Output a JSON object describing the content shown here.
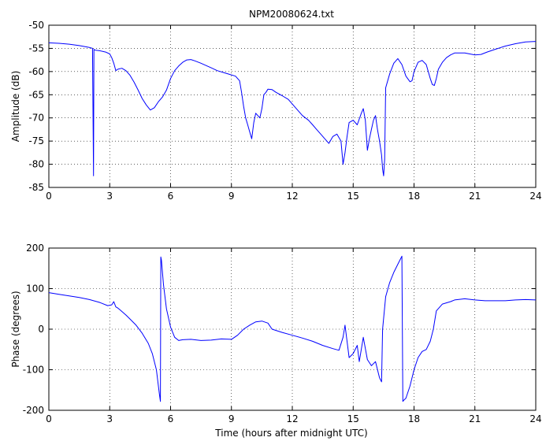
{
  "figure": {
    "title": "NPM20080624.txt",
    "xlabel": "Time (hours after midnight UTC)",
    "line_color": "#0000ff"
  },
  "chart_data": [
    {
      "type": "line",
      "title": "NPM20080624.txt",
      "xlabel": "",
      "ylabel": "Amplitude (dB)",
      "xlim": [
        0,
        24
      ],
      "ylim": [
        -85,
        -50
      ],
      "xticks": [
        0,
        3,
        6,
        9,
        12,
        15,
        18,
        21,
        24
      ],
      "yticks": [
        -85,
        -80,
        -75,
        -70,
        -65,
        -60,
        -55,
        -50
      ],
      "grid": true,
      "series": [
        {
          "x": [
            0,
            0.5,
            1,
            1.5,
            2,
            2.15,
            2.2,
            2.22,
            2.25,
            2.3,
            2.5,
            2.8,
            3.0,
            3.1,
            3.2,
            3.3,
            3.4,
            3.6,
            3.8,
            4.0,
            4.2,
            4.4,
            4.6,
            4.8,
            5.0,
            5.2,
            5.4,
            5.6,
            5.8,
            6.0,
            6.2,
            6.4,
            6.6,
            6.8,
            7.0,
            7.2,
            7.5,
            7.8,
            8.0,
            8.3,
            8.6,
            8.9,
            9.2,
            9.4,
            9.5,
            9.6,
            9.7,
            9.8,
            9.9,
            10.0,
            10.1,
            10.2,
            10.4,
            10.5,
            10.6,
            10.7,
            10.8,
            11.0,
            11.2,
            11.5,
            11.8,
            12.0,
            12.2,
            12.5,
            12.8,
            13.0,
            13.2,
            13.4,
            13.6,
            13.8,
            14.0,
            14.2,
            14.4,
            14.5,
            14.6,
            14.7,
            14.8,
            15.0,
            15.2,
            15.4,
            15.5,
            15.6,
            15.7,
            15.8,
            15.9,
            16.0,
            16.1,
            16.2,
            16.3,
            16.4,
            16.45,
            16.5,
            16.55,
            16.6,
            16.8,
            17.0,
            17.2,
            17.4,
            17.6,
            17.8,
            17.9,
            18.0,
            18.2,
            18.4,
            18.6,
            18.8,
            18.9,
            19.0,
            19.1,
            19.2,
            19.4,
            19.6,
            19.8,
            20.0,
            20.5,
            21.0,
            21.3,
            21.6,
            22.0,
            22.5,
            23.0,
            23.5,
            24.0
          ],
          "y": [
            -53.8,
            -53.9,
            -54.1,
            -54.4,
            -54.8,
            -55.0,
            -82.5,
            -55.2,
            -55.3,
            -55.4,
            -55.5,
            -55.8,
            -56.2,
            -57.0,
            -58.2,
            -59.8,
            -59.5,
            -59.3,
            -59.8,
            -60.8,
            -62.3,
            -64.0,
            -65.8,
            -67.2,
            -68.3,
            -67.8,
            -66.5,
            -65.5,
            -64.0,
            -61.5,
            -59.8,
            -58.8,
            -58.0,
            -57.5,
            -57.4,
            -57.7,
            -58.2,
            -58.8,
            -59.2,
            -59.8,
            -60.2,
            -60.6,
            -61.0,
            -62.0,
            -64.5,
            -67.5,
            -70.0,
            -71.5,
            -73.0,
            -74.5,
            -71.0,
            -69.0,
            -70.0,
            -68.0,
            -65.0,
            -64.5,
            -63.8,
            -63.9,
            -64.5,
            -65.2,
            -66.0,
            -67.0,
            -68.0,
            -69.5,
            -70.5,
            -71.5,
            -72.5,
            -73.5,
            -74.5,
            -75.5,
            -74.0,
            -73.5,
            -75.0,
            -80.0,
            -77.5,
            -74.0,
            -71.0,
            -70.5,
            -71.5,
            -69.0,
            -68.0,
            -70.5,
            -77.0,
            -74.5,
            -72.5,
            -70.5,
            -69.5,
            -72.5,
            -75.0,
            -78.0,
            -81.0,
            -82.5,
            -79.0,
            -63.5,
            -60.5,
            -58.2,
            -57.2,
            -58.5,
            -61.0,
            -62.2,
            -62.0,
            -60.0,
            -58.0,
            -57.6,
            -58.5,
            -61.5,
            -62.8,
            -63.0,
            -61.5,
            -59.5,
            -58.0,
            -57.0,
            -56.4,
            -56.0,
            -56.0,
            -56.4,
            -56.3,
            -55.8,
            -55.2,
            -54.5,
            -54.0,
            -53.6,
            -53.5
          ]
        }
      ]
    },
    {
      "type": "line",
      "title": "",
      "xlabel": "Time (hours after midnight UTC)",
      "ylabel": "Phase (degrees)",
      "xlim": [
        0,
        24
      ],
      "ylim": [
        -200,
        200
      ],
      "xticks": [
        0,
        3,
        6,
        9,
        12,
        15,
        18,
        21,
        24
      ],
      "yticks": [
        -200,
        -100,
        0,
        100,
        200
      ],
      "grid": true,
      "series": [
        {
          "x": [
            0,
            0.5,
            1,
            1.5,
            2,
            2.5,
            2.9,
            3.1,
            3.2,
            3.3,
            3.4,
            3.5,
            3.8,
            4.0,
            4.3,
            4.6,
            4.9,
            5.1,
            5.3,
            5.45,
            5.5,
            5.52,
            5.55,
            5.65,
            5.8,
            6.0,
            6.2,
            6.4,
            6.6,
            7.0,
            7.5,
            8.0,
            8.5,
            9.0,
            9.3,
            9.6,
            9.9,
            10.2,
            10.5,
            10.8,
            11.0,
            11.5,
            12.0,
            12.5,
            13.0,
            13.5,
            14.0,
            14.3,
            14.5,
            14.6,
            14.7,
            14.8,
            15.0,
            15.2,
            15.3,
            15.5,
            15.7,
            15.9,
            16.1,
            16.3,
            16.4,
            16.45,
            16.6,
            16.8,
            17.0,
            17.2,
            17.4,
            17.45,
            17.5,
            17.6,
            17.8,
            18.0,
            18.2,
            18.4,
            18.6,
            18.8,
            18.95,
            19.1,
            19.4,
            19.8,
            20.0,
            20.5,
            21.0,
            21.5,
            22.0,
            22.5,
            23.0,
            23.5,
            24.0
          ],
          "y": [
            90,
            86,
            82,
            78,
            73,
            66,
            58,
            60,
            68,
            55,
            52,
            48,
            35,
            25,
            10,
            -10,
            -35,
            -60,
            -100,
            -160,
            -178,
            178,
            170,
            110,
            50,
            5,
            -20,
            -28,
            -26,
            -25,
            -28,
            -27,
            -24,
            -25,
            -15,
            0,
            10,
            18,
            20,
            15,
            0,
            -8,
            -15,
            -22,
            -30,
            -40,
            -48,
            -52,
            -20,
            10,
            -30,
            -70,
            -60,
            -40,
            -80,
            -20,
            -75,
            -90,
            -80,
            -120,
            -130,
            0,
            80,
            115,
            140,
            160,
            180,
            -178,
            -175,
            -170,
            -140,
            -100,
            -70,
            -55,
            -50,
            -30,
            0,
            45,
            62,
            68,
            72,
            75,
            72,
            70,
            70,
            70,
            72,
            73,
            72
          ]
        }
      ]
    }
  ]
}
